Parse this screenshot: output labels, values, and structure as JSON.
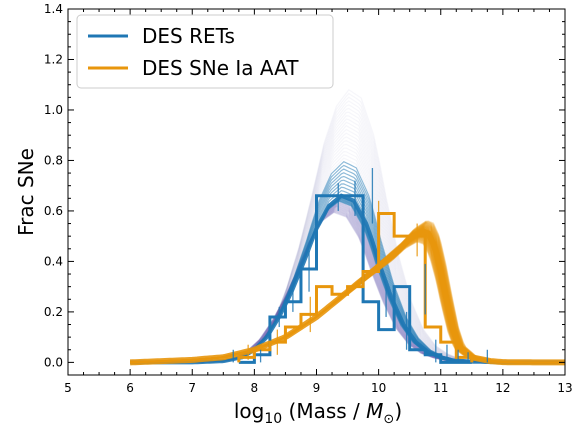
{
  "chart_data": {
    "type": "line",
    "xlabel": "log₁₀ (Mass / M☉)",
    "ylabel": "Frac SNe",
    "xlim": [
      5,
      13
    ],
    "ylim": [
      -0.05,
      1.4
    ],
    "xticks": [
      5,
      6,
      7,
      8,
      9,
      10,
      11,
      12,
      13
    ],
    "yticks": [
      0.0,
      0.2,
      0.4,
      0.6,
      0.8,
      1.0,
      1.2,
      1.4
    ],
    "xtick_labels": [
      "5",
      "6",
      "7",
      "8",
      "9",
      "10",
      "11",
      "12",
      "13"
    ],
    "ytick_labels": [
      "0.0",
      "0.2",
      "0.4",
      "0.6",
      "0.8",
      "1.0",
      "1.2",
      "1.4"
    ],
    "grid": false,
    "legend_position": "top-left",
    "legend": [
      "DES RETs",
      "DES SNe Ia AAT"
    ],
    "colors": {
      "blue": "#1f77b4",
      "orange": "#e8960c",
      "purple": "#6b5fb0"
    },
    "series": [
      {
        "name": "DES RETs",
        "style": "step-histogram",
        "color": "#1f77b4",
        "edges": [
          7.75,
          8.0,
          8.25,
          8.5,
          8.75,
          9.0,
          9.25,
          9.5,
          9.75,
          10.0,
          10.25,
          10.5,
          10.75,
          11.0,
          11.25,
          11.5
        ],
        "values": [
          0.0,
          0.03,
          0.18,
          0.24,
          0.37,
          0.66,
          0.66,
          0.66,
          0.24,
          0.13,
          0.3,
          0.05,
          0.03,
          0.0,
          0.0
        ],
        "errors": [
          [
            7.66,
            0.0,
            0.05
          ],
          [
            8.1,
            0.0,
            0.05
          ],
          [
            8.4,
            0.14,
            0.22
          ],
          [
            8.62,
            0.2,
            0.3
          ],
          [
            8.88,
            0.28,
            0.44
          ],
          [
            9.35,
            0.6,
            0.71
          ],
          [
            9.62,
            0.58,
            0.72
          ],
          [
            9.9,
            0.55,
            0.77
          ],
          [
            10.12,
            0.18,
            0.3
          ],
          [
            10.45,
            0.05,
            0.2
          ],
          [
            10.75,
            0.19,
            0.39
          ],
          [
            10.92,
            0.0,
            0.09
          ],
          [
            11.1,
            0.0,
            0.07
          ],
          [
            11.28,
            0.0,
            0.05
          ],
          [
            11.44,
            0.0,
            0.04
          ],
          [
            11.75,
            0.0,
            0.05
          ]
        ]
      },
      {
        "name": "DES SNe Ia AAT",
        "style": "step-histogram",
        "color": "#e8960c",
        "edges": [
          7.75,
          8.0,
          8.25,
          8.5,
          8.75,
          9.0,
          9.25,
          9.5,
          9.75,
          10.0,
          10.25,
          10.5,
          10.75,
          11.0,
          11.25,
          11.5
        ],
        "values": [
          0.02,
          0.05,
          0.08,
          0.14,
          0.19,
          0.3,
          0.27,
          0.3,
          0.36,
          0.59,
          0.5,
          0.5,
          0.14,
          0.08,
          0.02
        ],
        "errors": [
          [
            7.9,
            0.01,
            0.07
          ],
          [
            8.37,
            0.03,
            0.13
          ],
          [
            8.9,
            0.12,
            0.26
          ],
          [
            10.0,
            0.52,
            0.64
          ],
          [
            10.62,
            0.42,
            0.55
          ]
        ]
      },
      {
        "name": "",
        "style": "model-band",
        "color": "#1f77b4",
        "x": [
          6.0,
          6.5,
          7.0,
          7.5,
          7.8,
          8.0,
          8.2,
          8.4,
          8.6,
          8.8,
          9.0,
          9.2,
          9.4,
          9.6,
          9.8,
          9.9,
          10.0,
          10.2,
          10.4,
          10.6,
          10.8,
          11.0,
          11.2,
          11.5,
          12.0,
          13.0
        ],
        "y": [
          0.0,
          0.0,
          0.0,
          0.005,
          0.02,
          0.05,
          0.1,
          0.18,
          0.28,
          0.4,
          0.53,
          0.62,
          0.66,
          0.64,
          0.55,
          0.48,
          0.4,
          0.26,
          0.15,
          0.08,
          0.04,
          0.02,
          0.008,
          0.003,
          0.0,
          0.0
        ],
        "peak_envelope": 1.08
      },
      {
        "name": "",
        "style": "model-band",
        "color": "#e8960c",
        "x": [
          6.0,
          6.5,
          7.0,
          7.5,
          8.0,
          8.5,
          9.0,
          9.5,
          10.0,
          10.3,
          10.5,
          10.7,
          10.8,
          10.9,
          11.0,
          11.1,
          11.2,
          11.3,
          11.5,
          11.8,
          12.0,
          12.5,
          13.0
        ],
        "y": [
          0.0,
          0.005,
          0.01,
          0.02,
          0.05,
          0.1,
          0.18,
          0.28,
          0.38,
          0.44,
          0.49,
          0.52,
          0.51,
          0.46,
          0.36,
          0.24,
          0.13,
          0.06,
          0.02,
          0.005,
          0.001,
          0.0,
          0.0
        ]
      }
    ]
  }
}
